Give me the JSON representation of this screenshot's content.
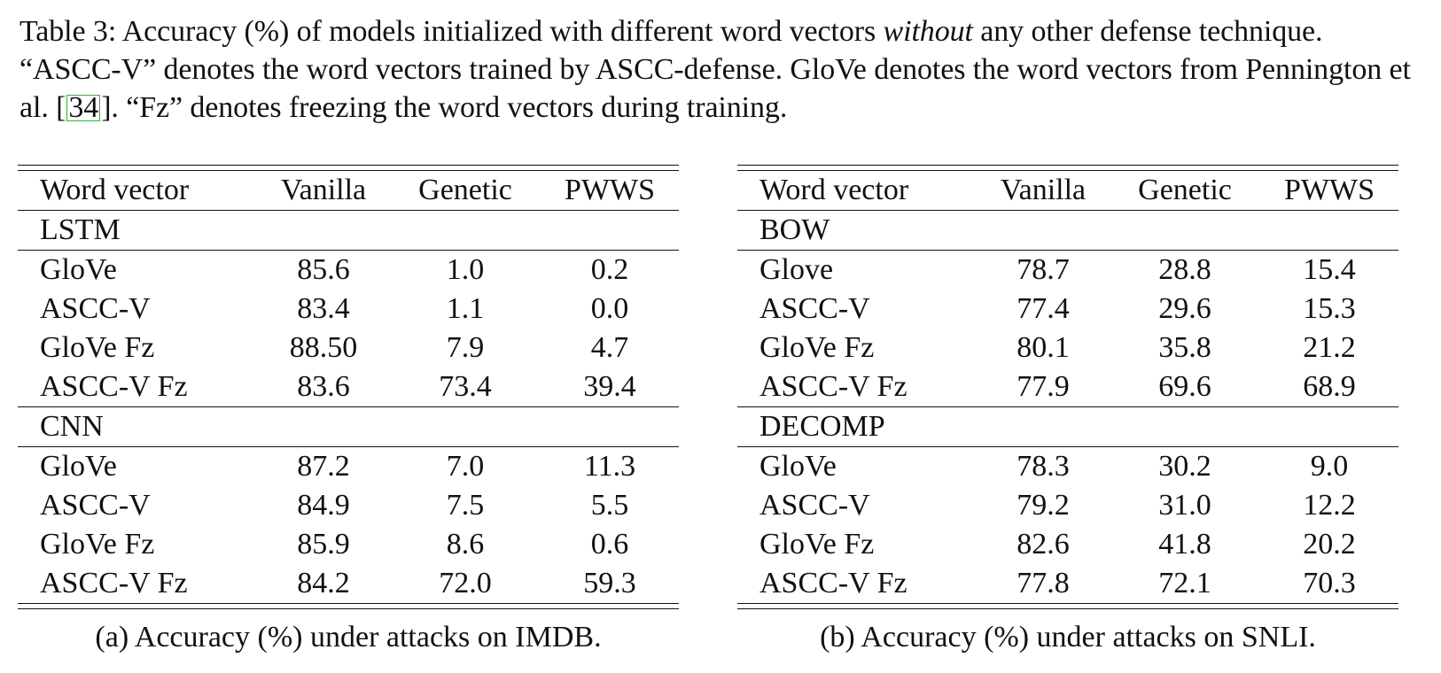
{
  "caption": {
    "prefix": "Table 3: Accuracy (%) of models initialized with different word vectors ",
    "emph": "without",
    "part2": " any other defense technique. “ASCC-V” denotes the word vectors trained by ASCC-defense. GloVe denotes the word vectors from Pennington et al. [",
    "ref": "34",
    "part3": "]. “Fz” denotes freezing the word vectors during training."
  },
  "headers": [
    "Word vector",
    "Vanilla",
    "Genetic",
    "PWWS"
  ],
  "imdb": {
    "caption": "(a) Accuracy (%) under attacks on IMDB.",
    "groups": [
      {
        "name": "LSTM",
        "rows": [
          {
            "vec": "GloVe",
            "vanilla": "85.6",
            "genetic": "1.0",
            "pwws": "0.2"
          },
          {
            "vec": "ASCC-V",
            "vanilla": "83.4",
            "genetic": "1.1",
            "pwws": "0.0"
          },
          {
            "vec": "GloVe Fz",
            "vanilla": "88.50",
            "genetic": "7.9",
            "pwws": "4.7"
          },
          {
            "vec": "ASCC-V Fz",
            "vanilla": "83.6",
            "genetic": "73.4",
            "pwws": "39.4"
          }
        ]
      },
      {
        "name": "CNN",
        "rows": [
          {
            "vec": "GloVe",
            "vanilla": "87.2",
            "genetic": "7.0",
            "pwws": "11.3"
          },
          {
            "vec": "ASCC-V",
            "vanilla": "84.9",
            "genetic": "7.5",
            "pwws": "5.5"
          },
          {
            "vec": "GloVe Fz",
            "vanilla": "85.9",
            "genetic": "8.6",
            "pwws": "0.6"
          },
          {
            "vec": "ASCC-V Fz",
            "vanilla": "84.2",
            "genetic": "72.0",
            "pwws": "59.3"
          }
        ]
      }
    ]
  },
  "snli": {
    "caption": "(b) Accuracy (%) under attacks on SNLI.",
    "groups": [
      {
        "name": "BOW",
        "rows": [
          {
            "vec": "Glove",
            "vanilla": "78.7",
            "genetic": "28.8",
            "pwws": "15.4"
          },
          {
            "vec": "ASCC-V",
            "vanilla": "77.4",
            "genetic": "29.6",
            "pwws": "15.3"
          },
          {
            "vec": "GloVe Fz",
            "vanilla": "80.1",
            "genetic": "35.8",
            "pwws": "21.2"
          },
          {
            "vec": "ASCC-V Fz",
            "vanilla": "77.9",
            "genetic": "69.6",
            "pwws": "68.9"
          }
        ]
      },
      {
        "name": "DECOMP",
        "rows": [
          {
            "vec": "GloVe",
            "vanilla": "78.3",
            "genetic": "30.2",
            "pwws": "9.0"
          },
          {
            "vec": "ASCC-V",
            "vanilla": "79.2",
            "genetic": "31.0",
            "pwws": "12.2"
          },
          {
            "vec": "GloVe Fz",
            "vanilla": "82.6",
            "genetic": "41.8",
            "pwws": "20.2"
          },
          {
            "vec": "ASCC-V Fz",
            "vanilla": "77.8",
            "genetic": "72.1",
            "pwws": "70.3"
          }
        ]
      }
    ]
  }
}
